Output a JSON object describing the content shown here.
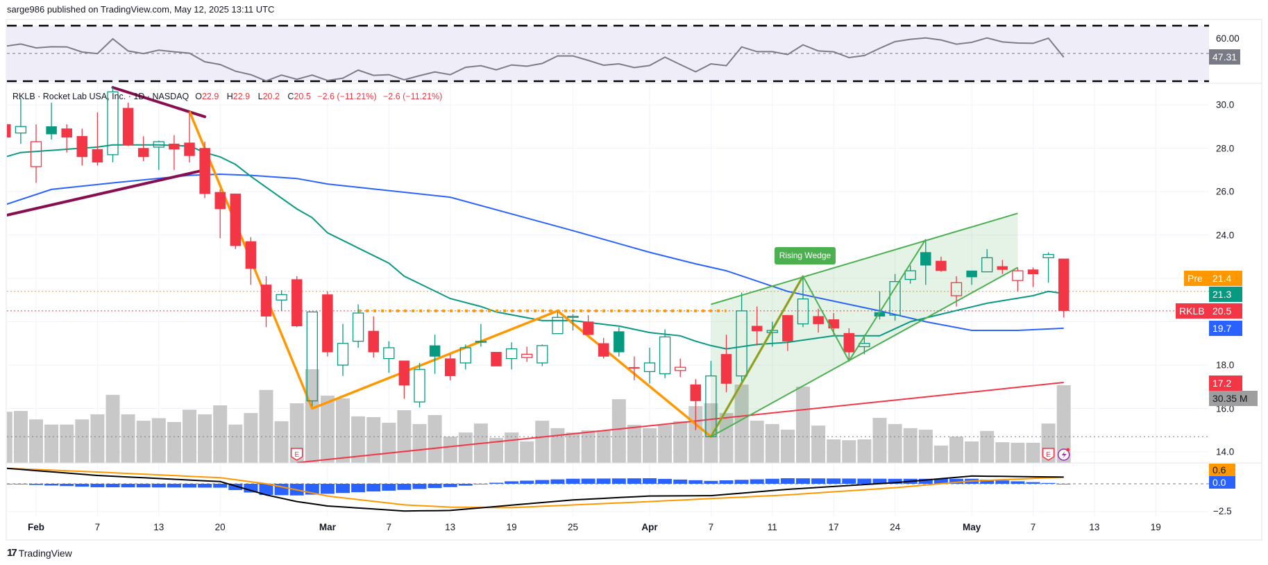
{
  "header": {
    "published": "sarge986 published on TradingView.com, May 12, 2025 13:11 UTC"
  },
  "legend": {
    "title": "RKLB · Rocket Lab USA, Inc. · 1D · NASDAQ",
    "o_label": "O",
    "o": "22.9",
    "h_label": "H",
    "h": "22.9",
    "l_label": "L",
    "l": "20.2",
    "c_label": "C",
    "c": "20.5",
    "change1": "−2.6 (−11.21%)",
    "change2": "−2.6 (−11.21%)"
  },
  "badges": {
    "pre_label": "Pre",
    "pre_value": "21.4",
    "ma_green": "21.3",
    "symbol": "RKLB",
    "last": "20.5",
    "ma_blue": "19.7",
    "trendline_red": "17.2",
    "volume": "30.35 M",
    "rsi_value": "47.31",
    "rsi_tick": "60.00",
    "macd_value": "0.6",
    "hist_value": "0.0"
  },
  "annotations": {
    "rising_wedge": "Rising Wedge",
    "earnings_marker": "E"
  },
  "footer": {
    "brand": "TradingView"
  },
  "colors": {
    "up": "#089981",
    "down": "#f23645",
    "ma_green": "#089981",
    "ma_blue": "#2962ff",
    "orange": "#ff9800",
    "maroon": "#880e4f",
    "wedge": "#4caf50",
    "volume": "#c8c8c8",
    "rsi_line": "#7e7b88",
    "rsi_bg": "#efedf8",
    "macd": "#000000",
    "signal": "#ff9800",
    "hist": "#2962ff"
  },
  "chart_data": {
    "type": "candlestick",
    "symbol": "RKLB",
    "interval": "1D",
    "ylim": [
      13.5,
      30.9
    ],
    "price_ticks": [
      "30.0",
      "28.0",
      "26.0",
      "24.0",
      "18.0",
      "16.0",
      "14.0"
    ],
    "price_tick_values": [
      30,
      28,
      26,
      24,
      18,
      16,
      14
    ],
    "time_labels": [
      {
        "label": "Feb",
        "date": "2025-02-03",
        "month": true
      },
      {
        "label": "7",
        "date": "2025-02-07"
      },
      {
        "label": "13",
        "date": "2025-02-13"
      },
      {
        "label": "20",
        "date": "2025-02-20"
      },
      {
        "label": "Mar",
        "date": "2025-03-03",
        "month": true
      },
      {
        "label": "7",
        "date": "2025-03-07"
      },
      {
        "label": "13",
        "date": "2025-03-13"
      },
      {
        "label": "19",
        "date": "2025-03-19"
      },
      {
        "label": "25",
        "date": "2025-03-25"
      },
      {
        "label": "Apr",
        "date": "2025-04-01",
        "month": true
      },
      {
        "label": "7",
        "date": "2025-04-07"
      },
      {
        "label": "11",
        "date": "2025-04-11"
      },
      {
        "label": "17",
        "date": "2025-04-17"
      },
      {
        "label": "24",
        "date": "2025-04-24"
      },
      {
        "label": "May",
        "date": "2025-05-01",
        "month": true
      },
      {
        "label": "7",
        "date": "2025-05-07"
      },
      {
        "label": "13",
        "date": "2025-05-13"
      },
      {
        "label": "19",
        "date": "2025-05-19"
      }
    ],
    "candle_fields": [
      "date",
      "open",
      "high",
      "low",
      "close",
      "volume_M"
    ],
    "candles": [
      [
        "2025-01-30",
        29.1,
        29.3,
        28.3,
        28.5,
        20
      ],
      [
        "2025-01-31",
        28.7,
        30.3,
        28.2,
        29.0,
        20.3
      ],
      [
        "2025-02-03",
        27.15,
        29.1,
        26.4,
        28.3,
        17
      ],
      [
        "2025-02-04",
        29.0,
        30.1,
        28.4,
        28.65,
        15
      ],
      [
        "2025-02-05",
        28.9,
        29.1,
        27.8,
        28.5,
        15
      ],
      [
        "2025-02-06",
        28.55,
        28.9,
        27.2,
        27.6,
        17
      ],
      [
        "2025-02-07",
        27.95,
        29.65,
        27.2,
        27.35,
        19
      ],
      [
        "2025-02-10",
        27.7,
        30.8,
        27.35,
        30.6,
        26.6
      ],
      [
        "2025-02-11",
        29.85,
        30.1,
        28.1,
        28.15,
        19
      ],
      [
        "2025-02-12",
        28.0,
        28.55,
        27.4,
        27.6,
        16.5
      ],
      [
        "2025-02-13",
        28.05,
        28.35,
        27.0,
        28.3,
        17.5
      ],
      [
        "2025-02-14",
        28.2,
        28.6,
        27.0,
        27.95,
        16
      ],
      [
        "2025-02-18",
        28.25,
        29.7,
        27.35,
        27.65,
        20.8
      ],
      [
        "2025-02-19",
        28.0,
        28.3,
        25.7,
        25.9,
        19
      ],
      [
        "2025-02-20",
        25.97,
        26.1,
        23.85,
        25.2,
        22.5
      ],
      [
        "2025-02-21",
        25.9,
        25.9,
        23.35,
        23.5,
        15
      ],
      [
        "2025-02-24",
        23.7,
        23.9,
        21.7,
        22.45,
        19.5
      ],
      [
        "2025-02-25",
        21.7,
        22.1,
        19.75,
        20.25,
        28.5
      ],
      [
        "2025-02-26",
        21.0,
        21.45,
        20.5,
        21.25,
        16.3
      ],
      [
        "2025-02-27",
        21.95,
        22.1,
        19.75,
        19.8,
        23.3
      ],
      [
        "2025-02-28",
        16.35,
        20.45,
        16.1,
        20.45,
        36.6
      ],
      [
        "2025-03-03",
        21.25,
        21.4,
        18.4,
        18.6,
        26.3
      ],
      [
        "2025-03-04",
        18.0,
        19.9,
        17.5,
        19.0,
        25.2
      ],
      [
        "2025-03-05",
        19.1,
        20.8,
        18.8,
        20.4,
        18.2
      ],
      [
        "2025-03-06",
        19.57,
        20.25,
        18.35,
        18.6,
        17.9
      ],
      [
        "2025-03-07",
        18.3,
        19.1,
        17.65,
        18.8,
        15.7
      ],
      [
        "2025-03-10",
        18.2,
        18.2,
        16.45,
        17.07,
        20.6
      ],
      [
        "2025-03-11",
        16.3,
        18.1,
        16.05,
        17.8,
        15.2
      ],
      [
        "2025-03-12",
        18.9,
        19.4,
        17.6,
        18.4,
        18.7
      ],
      [
        "2025-03-13",
        18.3,
        18.5,
        17.3,
        17.5,
        10.3
      ],
      [
        "2025-03-14",
        18.1,
        18.95,
        17.8,
        18.8,
        11.9
      ],
      [
        "2025-03-17",
        19.05,
        19.9,
        18.85,
        19.1,
        15.4
      ],
      [
        "2025-03-18",
        18.6,
        18.6,
        17.95,
        17.95,
        9.8
      ],
      [
        "2025-03-19",
        18.3,
        19.05,
        17.8,
        18.75,
        11.9
      ],
      [
        "2025-03-20",
        18.35,
        18.85,
        18.15,
        18.5,
        8.4
      ],
      [
        "2025-03-21",
        18.1,
        18.95,
        17.95,
        18.9,
        16.5
      ],
      [
        "2025-03-24",
        19.45,
        20.45,
        19.45,
        20.2,
        13.6
      ],
      [
        "2025-03-25",
        20.2,
        20.35,
        19.6,
        20.25,
        11.9
      ],
      [
        "2025-03-26",
        20.0,
        20.3,
        19.4,
        19.4,
        12.7
      ],
      [
        "2025-03-27",
        19.0,
        19.25,
        18.3,
        18.4,
        12.7
      ],
      [
        "2025-03-28",
        19.55,
        19.75,
        18.4,
        18.6,
        24.9
      ],
      [
        "2025-03-31",
        17.9,
        18.4,
        17.3,
        17.85,
        14.9
      ],
      [
        "2025-04-01",
        17.7,
        18.8,
        17.15,
        18.1,
        13.6
      ],
      [
        "2025-04-02",
        17.6,
        19.65,
        17.4,
        19.3,
        14.9
      ],
      [
        "2025-04-03",
        17.75,
        18.3,
        17.45,
        17.9,
        16.3
      ],
      [
        "2025-04-04",
        17.1,
        17.35,
        15.0,
        16.35,
        22.2
      ],
      [
        "2025-04-07",
        14.7,
        18.2,
        14.7,
        17.5,
        23.3
      ],
      [
        "2025-04-08",
        18.5,
        19.4,
        16.75,
        17.15,
        19.5
      ],
      [
        "2025-04-09",
        17.5,
        21.35,
        17.25,
        20.5,
        30.6
      ],
      [
        "2025-04-10",
        19.8,
        20.7,
        18.9,
        19.57,
        16.5
      ],
      [
        "2025-04-11",
        19.5,
        20.0,
        18.85,
        19.6,
        15.2
      ],
      [
        "2025-04-14",
        20.3,
        20.3,
        18.65,
        19.1,
        13
      ],
      [
        "2025-04-15",
        19.9,
        22.1,
        19.75,
        21.05,
        29.8
      ],
      [
        "2025-04-16",
        20.25,
        20.6,
        19.5,
        19.9,
        14.6
      ],
      [
        "2025-04-17",
        20.1,
        20.4,
        19.4,
        19.7,
        9.2
      ],
      [
        "2025-04-21",
        19.47,
        19.7,
        18.2,
        18.6,
        8.9
      ],
      [
        "2025-04-22",
        18.85,
        19.4,
        18.5,
        19.0,
        9.2
      ],
      [
        "2025-04-23",
        20.43,
        21.4,
        20.1,
        20.25,
        17.6
      ],
      [
        "2025-04-24",
        20.3,
        22.2,
        20.05,
        21.85,
        15.2
      ],
      [
        "2025-04-25",
        21.95,
        22.6,
        21.75,
        22.35,
        13.6
      ],
      [
        "2025-04-28",
        23.2,
        23.8,
        21.7,
        22.6,
        13
      ],
      [
        "2025-04-29",
        22.8,
        23.0,
        22.3,
        22.35,
        6.8
      ],
      [
        "2025-04-30",
        21.2,
        22.1,
        20.7,
        21.8,
        10.3
      ],
      [
        "2025-05-01",
        22.35,
        22.35,
        21.7,
        22.06,
        8.4
      ],
      [
        "2025-05-02",
        22.3,
        23.35,
        22.3,
        22.95,
        12.5
      ],
      [
        "2025-05-05",
        22.55,
        22.85,
        22.2,
        22.4,
        8.1
      ],
      [
        "2025-05-06",
        21.9,
        22.5,
        21.4,
        22.35,
        7.9
      ],
      [
        "2025-05-07",
        22.4,
        22.5,
        21.6,
        22.2,
        7.9
      ],
      [
        "2025-05-08",
        22.95,
        23.2,
        21.8,
        23.1,
        15.4
      ],
      [
        "2025-05-09",
        22.9,
        22.9,
        20.2,
        20.5,
        30.35
      ]
    ],
    "ma_green": [
      [
        "2025-01-30",
        27.6
      ],
      [
        "2025-01-31",
        27.8
      ],
      [
        "2025-02-04",
        27.9
      ],
      [
        "2025-02-07",
        28.05
      ],
      [
        "2025-02-10",
        28.15
      ],
      [
        "2025-02-13",
        28.15
      ],
      [
        "2025-02-18",
        28.1
      ],
      [
        "2025-02-19",
        27.8
      ],
      [
        "2025-02-20",
        27.6
      ],
      [
        "2025-02-21",
        27.25
      ],
      [
        "2025-02-24",
        26.7
      ],
      [
        "2025-02-25",
        26.2
      ],
      [
        "2025-02-27",
        25.2
      ],
      [
        "2025-02-28",
        24.8
      ],
      [
        "2025-03-03",
        24.1
      ],
      [
        "2025-03-05",
        23.4
      ],
      [
        "2025-03-07",
        22.7
      ],
      [
        "2025-03-10",
        22.1
      ],
      [
        "2025-03-13",
        21.07
      ],
      [
        "2025-03-17",
        20.7
      ],
      [
        "2025-03-18",
        20.45
      ],
      [
        "2025-03-21",
        20.05
      ],
      [
        "2025-03-25",
        20.05
      ],
      [
        "2025-03-28",
        19.8
      ],
      [
        "2025-04-01",
        19.5
      ],
      [
        "2025-04-03",
        19.35
      ],
      [
        "2025-04-04",
        19.1
      ],
      [
        "2025-04-07",
        18.9
      ],
      [
        "2025-04-08",
        18.75
      ],
      [
        "2025-04-10",
        18.95
      ],
      [
        "2025-04-14",
        19.05
      ],
      [
        "2025-04-17",
        19.35
      ],
      [
        "2025-04-23",
        19.35
      ],
      [
        "2025-04-25",
        20.0
      ],
      [
        "2025-04-29",
        20.35
      ],
      [
        "2025-05-02",
        20.85
      ],
      [
        "2025-05-07",
        21.2
      ],
      [
        "2025-05-08",
        21.4
      ],
      [
        "2025-05-09",
        21.3
      ]
    ],
    "ma_blue": [
      [
        "2025-01-30",
        25.4
      ],
      [
        "2025-02-04",
        26.1
      ],
      [
        "2025-02-10",
        26.4
      ],
      [
        "2025-02-18",
        26.75
      ],
      [
        "2025-02-20",
        26.8
      ],
      [
        "2025-02-24",
        26.75
      ],
      [
        "2025-02-27",
        26.6
      ],
      [
        "2025-03-03",
        26.35
      ],
      [
        "2025-03-13",
        25.74
      ],
      [
        "2025-03-25",
        24.2
      ],
      [
        "2025-04-01",
        23.2
      ],
      [
        "2025-04-04",
        22.67
      ],
      [
        "2025-04-08",
        22.35
      ],
      [
        "2025-04-14",
        21.4
      ],
      [
        "2025-04-23",
        20.5
      ],
      [
        "2025-04-28",
        20.0
      ],
      [
        "2025-05-01",
        19.6
      ],
      [
        "2025-05-06",
        19.6
      ],
      [
        "2025-05-09",
        19.7
      ]
    ],
    "drawings": {
      "maroon_upper": [
        [
          "2025-02-10",
          30.8
        ],
        [
          "2025-02-19",
          29.45
        ]
      ],
      "maroon_lower": [
        [
          "2025-01-30",
          24.9
        ],
        [
          "2025-02-19",
          27.0
        ]
      ],
      "orange_zigzag": [
        [
          "2025-02-18",
          29.7
        ],
        [
          "2025-02-28",
          16.0
        ],
        [
          "2025-03-24",
          20.5
        ],
        [
          "2025-04-07",
          14.7
        ],
        [
          "2025-04-15",
          22.1
        ]
      ],
      "orange_neckline": [
        [
          "2025-03-05",
          20.5
        ],
        [
          "2025-04-08",
          20.5
        ]
      ],
      "red_trendline": [
        [
          "2025-02-27",
          13.5
        ],
        [
          "2025-05-09",
          17.2
        ]
      ],
      "wedge_upper": [
        [
          "2025-04-07",
          20.8
        ],
        [
          "2025-05-06",
          25.0
        ]
      ],
      "wedge_lower": [
        [
          "2025-04-07",
          14.7
        ],
        [
          "2025-05-06",
          22.5
        ]
      ],
      "wedge_zigzag": [
        [
          "2025-04-07",
          14.7
        ],
        [
          "2025-04-15",
          22.1
        ],
        [
          "2025-04-21",
          18.2
        ],
        [
          "2025-04-28",
          23.8
        ]
      ],
      "hline_low": 14.7,
      "pre_price": 21.4,
      "last_price": 20.5
    },
    "events": [
      {
        "type": "earnings",
        "date": "2025-02-27"
      },
      {
        "type": "earnings",
        "date": "2025-05-08"
      },
      {
        "type": "flash",
        "date": "2025-05-09"
      }
    ],
    "rsi": {
      "levels": [
        70,
        50,
        30
      ],
      "tick": 60,
      "last": 47.31,
      "values": [
        55.2,
        56.8,
        54,
        54.8,
        54.7,
        51,
        49.9,
        60.5,
        51.8,
        49.9,
        52.4,
        51.2,
        50.2,
        44,
        42,
        37.2,
        34.7,
        30.2,
        34.4,
        31.4,
        34.4,
        30.5,
        32.2,
        38,
        34.2,
        34.7,
        31,
        34,
        36.7,
        34.7,
        40,
        41.2,
        38.2,
        41.7,
        40.8,
        42.8,
        48.2,
        48.2,
        45,
        41.5,
        42.5,
        39.8,
        41.3,
        47.3,
        42,
        36.8,
        42.5,
        41.2,
        54.7,
        51.3,
        51.3,
        49.2,
        56.2,
        51.8,
        51.2,
        47,
        48.5,
        53.7,
        58.5,
        60.2,
        61.2,
        59.7,
        56.7,
        58,
        61.2,
        58.3,
        57.5,
        57.3,
        61,
        47.31
      ]
    },
    "macd": {
      "tick": "−2.5",
      "tick_value": -2.5,
      "macd": [
        [
          "2025-01-30",
          1.4
        ],
        [
          "2025-02-07",
          0.75
        ],
        [
          "2025-02-20",
          0.2
        ],
        [
          "2025-02-24",
          -0.6
        ],
        [
          "2025-02-25",
          -1.0
        ],
        [
          "2025-02-27",
          -1.6
        ],
        [
          "2025-03-03",
          -2.0
        ],
        [
          "2025-03-10",
          -2.45
        ],
        [
          "2025-03-13",
          -2.4
        ],
        [
          "2025-03-25",
          -1.45
        ],
        [
          "2025-04-01",
          -1.1
        ],
        [
          "2025-04-07",
          -1.07
        ],
        [
          "2025-04-14",
          -0.5
        ],
        [
          "2025-04-24",
          0.1
        ],
        [
          "2025-05-01",
          0.7
        ],
        [
          "2025-05-09",
          0.6
        ]
      ],
      "signal": [
        [
          "2025-01-30",
          1.4
        ],
        [
          "2025-02-07",
          1.06
        ],
        [
          "2025-02-20",
          0.55
        ],
        [
          "2025-02-25",
          0.0
        ],
        [
          "2025-03-03",
          -1.1
        ],
        [
          "2025-03-10",
          -1.9
        ],
        [
          "2025-03-13",
          -2.1
        ],
        [
          "2025-03-19",
          -2.15
        ],
        [
          "2025-04-01",
          -1.6
        ],
        [
          "2025-04-14",
          -1.0
        ],
        [
          "2025-04-24",
          -0.35
        ],
        [
          "2025-05-01",
          0.25
        ],
        [
          "2025-05-09",
          0.6
        ]
      ]
    }
  }
}
